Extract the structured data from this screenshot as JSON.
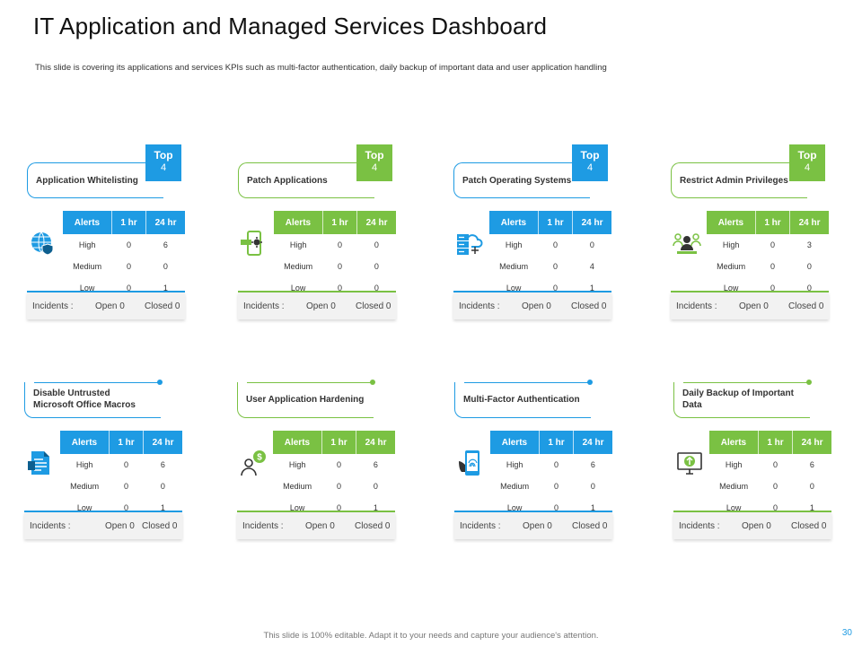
{
  "slide": {
    "title": "IT Application and Managed Services Dashboard",
    "subtitle": "This slide is covering its applications and services KPIs such as multi-factor authentication, daily backup of important data and user application handling",
    "footer": "This slide is 100% editable. Adapt it to your needs and capture your audience's attention.",
    "page_number": "30"
  },
  "colors": {
    "blue": "#1e9be3",
    "green": "#7ac143"
  },
  "cards": [
    {
      "name": "Application Whitelisting",
      "color": "blue",
      "badge_top": "Top",
      "badge_num": "4",
      "icon": "globe-shield-icon",
      "headers": [
        "Alerts",
        "1 hr",
        "24 hr"
      ],
      "rows": [
        [
          "High",
          "0",
          "6"
        ],
        [
          "Medium",
          "0",
          "0"
        ],
        [
          "Low",
          "0",
          "1"
        ]
      ],
      "incidents_label": "Incidents :",
      "open": "Open 0",
      "closed": "Closed 0"
    },
    {
      "name": "Patch Applications",
      "color": "green",
      "badge_top": "Top",
      "badge_num": "4",
      "icon": "mobile-patch-icon",
      "headers": [
        "Alerts",
        "1 hr",
        "24 hr"
      ],
      "rows": [
        [
          "High",
          "0",
          "0"
        ],
        [
          "Medium",
          "0",
          "0"
        ],
        [
          "Low",
          "0",
          "0"
        ]
      ],
      "incidents_label": "Incidents :",
      "open": "Open 0",
      "closed": "Closed 0"
    },
    {
      "name": "Patch Operating Systems",
      "color": "blue",
      "badge_top": "Top",
      "badge_num": "4",
      "icon": "cloud-server-icon",
      "headers": [
        "Alerts",
        "1 hr",
        "24 hr"
      ],
      "rows": [
        [
          "High",
          "0",
          "0"
        ],
        [
          "Medium",
          "0",
          "4"
        ],
        [
          "Low",
          "0",
          "1"
        ]
      ],
      "incidents_label": "Incidents :",
      "open": "Open 0",
      "closed": "Closed 0"
    },
    {
      "name": "Restrict Admin Privileges",
      "color": "green",
      "badge_top": "Top",
      "badge_num": "4",
      "icon": "admin-users-icon",
      "headers": [
        "Alerts",
        "1 hr",
        "24 hr"
      ],
      "rows": [
        [
          "High",
          "0",
          "3"
        ],
        [
          "Medium",
          "0",
          "0"
        ],
        [
          "Low",
          "0",
          "0"
        ]
      ],
      "incidents_label": "Incidents :",
      "open": "Open 0",
      "closed": "Closed 0"
    },
    {
      "name": "Disable Untrusted Microsoft Office Macros",
      "color": "blue",
      "icon": "document-macro-icon",
      "headers": [
        "Alerts",
        "1 hr",
        "24 hr"
      ],
      "rows": [
        [
          "High",
          "0",
          "6"
        ],
        [
          "Medium",
          "0",
          "0"
        ],
        [
          "Low",
          "0",
          "1"
        ]
      ],
      "incidents_label": "Incidents :",
      "open": "Open 0",
      "closed": "Closed 0"
    },
    {
      "name": "User Application Hardening",
      "color": "green",
      "icon": "user-dollar-icon",
      "headers": [
        "Alerts",
        "1 hr",
        "24 hr"
      ],
      "rows": [
        [
          "High",
          "0",
          "6"
        ],
        [
          "Medium",
          "0",
          "0"
        ],
        [
          "Low",
          "0",
          "1"
        ]
      ],
      "incidents_label": "Incidents :",
      "open": "Open 0",
      "closed": "Closed 0"
    },
    {
      "name": "Multi-Factor Authentication",
      "color": "blue",
      "icon": "phone-fingerprint-icon",
      "headers": [
        "Alerts",
        "1 hr",
        "24 hr"
      ],
      "rows": [
        [
          "High",
          "0",
          "6"
        ],
        [
          "Medium",
          "0",
          "0"
        ],
        [
          "Low",
          "0",
          "1"
        ]
      ],
      "incidents_label": "Incidents :",
      "open": "Open 0",
      "closed": "Closed 0"
    },
    {
      "name": "Daily Backup of Important Data",
      "color": "green",
      "icon": "monitor-backup-icon",
      "headers": [
        "Alerts",
        "1 hr",
        "24 hr"
      ],
      "rows": [
        [
          "High",
          "0",
          "6"
        ],
        [
          "Medium",
          "0",
          "0"
        ],
        [
          "Low",
          "0",
          "1"
        ]
      ],
      "incidents_label": "Incidents :",
      "open": "Open 0",
      "closed": "Closed 0"
    }
  ]
}
